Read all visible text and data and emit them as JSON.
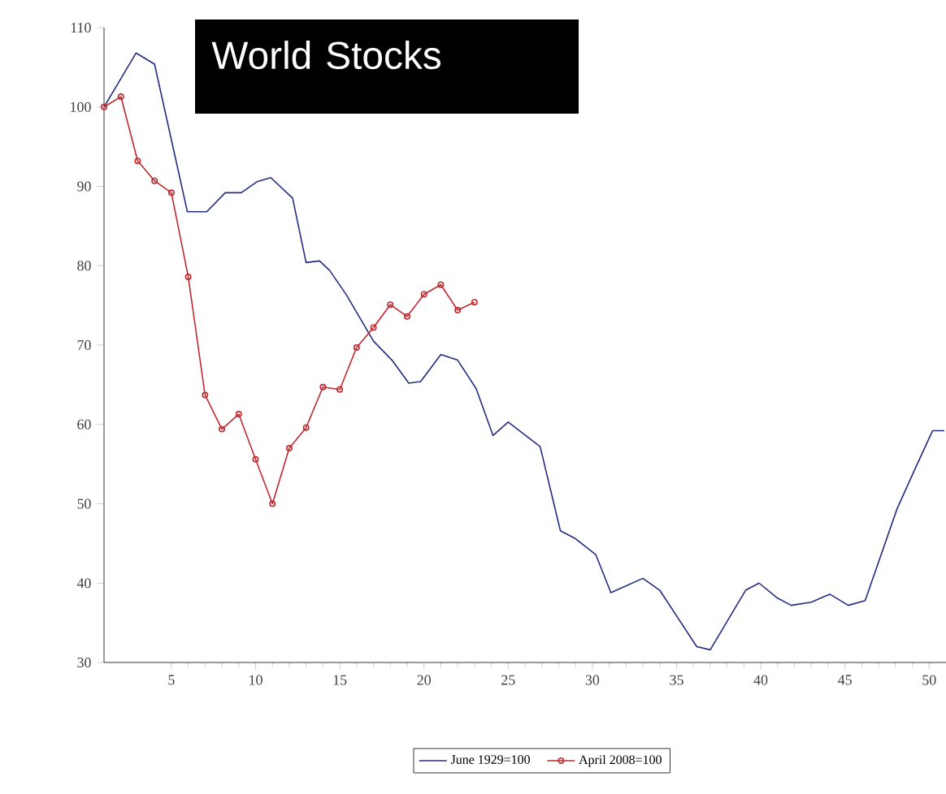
{
  "chart_data": {
    "type": "line",
    "title": "World Stocks",
    "xlim": [
      1,
      51
    ],
    "ylim": [
      30,
      110
    ],
    "xticks": [
      5,
      10,
      15,
      20,
      25,
      30,
      35,
      40,
      45,
      50
    ],
    "yticks": [
      30,
      40,
      50,
      60,
      70,
      80,
      90,
      100,
      110
    ],
    "legend": "bottom",
    "grid": false,
    "series": [
      {
        "name": "June 1929=100",
        "color": "#232c80",
        "marker": "none",
        "x": [
          1,
          2.9,
          4.0,
          5.95,
          7.1,
          8.2,
          9.15,
          10.1,
          10.9,
          12.2,
          13.0,
          13.8,
          14.4,
          15.4,
          17.0,
          18.1,
          19.1,
          19.8,
          21.0,
          22.0,
          23.1,
          24.1,
          25.0,
          26.9,
          28.1,
          29.0,
          30.2,
          31.1,
          33.0,
          34.0,
          36.2,
          37.0,
          39.1,
          39.9,
          41.0,
          41.8,
          43.0,
          44.1,
          45.2,
          46.2,
          48.1,
          49.1,
          50.2,
          50.9
        ],
        "values": [
          100,
          106.8,
          105.4,
          86.8,
          86.8,
          89.2,
          89.2,
          90.6,
          91.1,
          88.5,
          80.4,
          80.6,
          79.4,
          76.3,
          70.5,
          68.1,
          65.2,
          65.4,
          68.8,
          68.1,
          64.5,
          58.6,
          60.3,
          57.2,
          46.6,
          45.6,
          43.6,
          38.8,
          40.6,
          39.1,
          32.0,
          31.6,
          39.1,
          40.0,
          38.1,
          37.2,
          37.6,
          38.6,
          37.2,
          37.8,
          49.4,
          54.1,
          59.2,
          59.2
        ]
      },
      {
        "name": "April 2008=100",
        "color": "#c0282d",
        "marker": "circle",
        "x": [
          1,
          2,
          3,
          4,
          5,
          6,
          7,
          8,
          9,
          10,
          11,
          12,
          13,
          14,
          15,
          16,
          17,
          18,
          19,
          20,
          21,
          22,
          23
        ],
        "values": [
          100,
          101.3,
          93.2,
          90.7,
          89.2,
          78.6,
          63.7,
          59.4,
          61.3,
          55.6,
          50.0,
          57.0,
          59.6,
          64.7,
          64.4,
          69.7,
          72.2,
          75.1,
          73.6,
          76.4,
          77.6,
          74.4,
          75.4
        ]
      }
    ]
  }
}
